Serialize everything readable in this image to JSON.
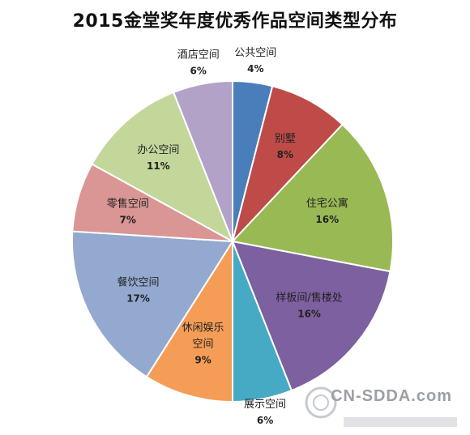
{
  "chart_data": {
    "type": "pie",
    "title": "2015金堂奖年度优秀作品空间类型分布",
    "categories": [
      "公共空间",
      "别墅",
      "住宅公寓",
      "样板间/售楼处",
      "展示空间",
      "休闲娱乐空间",
      "餐饮空间",
      "零售空间",
      "办公空间",
      "酒店空间"
    ],
    "values": [
      4,
      8,
      16,
      16,
      6,
      9,
      17,
      7,
      11,
      6
    ],
    "value_labels": [
      "4%",
      "8%",
      "16%",
      "16%",
      "6%",
      "9%",
      "17%",
      "7%",
      "11%",
      "6%"
    ],
    "colors": [
      "#4a7ebb",
      "#be4b48",
      "#98b954",
      "#7d60a0",
      "#46aac5",
      "#f59d56",
      "#93a9d0",
      "#d99694",
      "#c3d79b",
      "#b3a2c7"
    ],
    "start_angle_deg": 0,
    "direction": "clockwise",
    "legend": "none"
  },
  "watermark": {
    "text": "CN-SDDA.com"
  }
}
